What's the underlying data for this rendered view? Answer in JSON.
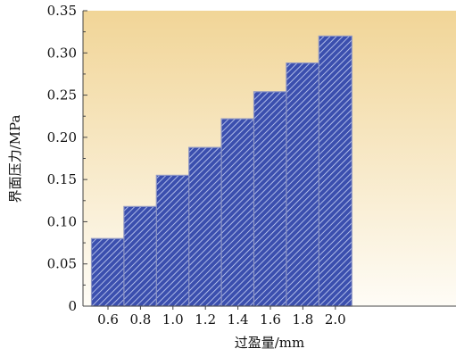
{
  "chart_data": {
    "type": "bar",
    "categories": [
      "0.6",
      "0.8",
      "1.0",
      "1.2",
      "1.4",
      "1.6",
      "1.8",
      "2.0"
    ],
    "values": [
      0.08,
      0.118,
      0.155,
      0.188,
      0.222,
      0.254,
      0.288,
      0.32
    ],
    "xlabel": "过盈量/mm",
    "ylabel": "界面压力/MPa",
    "ylim": [
      0,
      0.35
    ],
    "yticks": [
      "0",
      "0.05",
      "0.10",
      "0.15",
      "0.20",
      "0.25",
      "0.30",
      "0.35"
    ],
    "grid": false,
    "legend": "none"
  },
  "colors": {
    "bar_fill": "#3b4fae",
    "bar_hatch": "#c9d3f5",
    "bar_edge": "#8e96c4",
    "background_top": "#f1d597",
    "background_bottom": "#fefcf6"
  }
}
